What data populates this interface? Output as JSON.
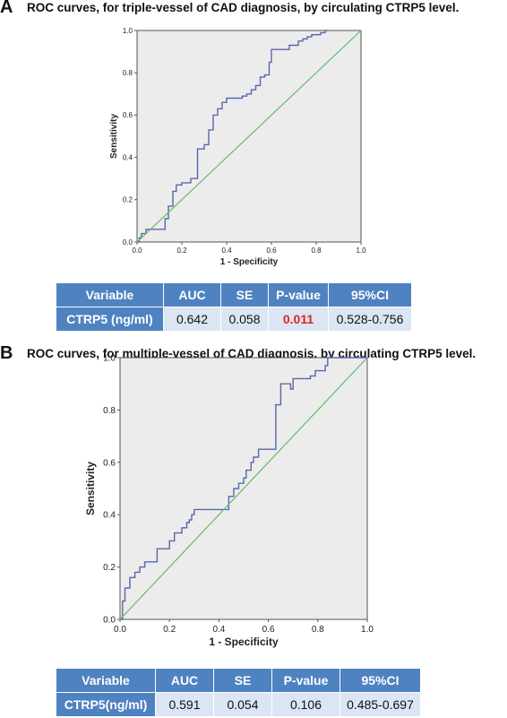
{
  "panels": [
    {
      "letter": "A",
      "title": "ROC curves, for triple-vessel  of CAD diagnosis, by circulating CTRP5 level.",
      "table": {
        "headers": [
          "Variable",
          "AUC",
          "SE",
          "P-value",
          "95%CI"
        ],
        "row": [
          "CTRP5 (ng/ml)",
          "0.642",
          "0.058",
          "0.011",
          "0.528-0.756"
        ]
      }
    },
    {
      "letter": "B",
      "title": "ROC curves, for multiple-vessel  of CAD diagnosis, by circulating CTRP5 level.",
      "table": {
        "headers": [
          "Variable",
          "AUC",
          "SE",
          "P-value",
          "95%CI"
        ],
        "row": [
          "CTRP5(ng/ml)",
          "0.591",
          "0.054",
          "0.106",
          "0.485-0.697"
        ]
      }
    }
  ],
  "colors": {
    "roc_line": "#5a66ad",
    "reference_line": "#66bb66",
    "plot_background": "#ececec",
    "table_header": "#4f82c0",
    "table_cell": "#dbe5f3",
    "significant_p": "#e0251b"
  },
  "chart_data": [
    {
      "type": "line",
      "xlabel": "1 - Specificity",
      "ylabel": "Sensitivity",
      "xlim": [
        0,
        1
      ],
      "ylim": [
        0,
        1
      ],
      "xticks": [
        "0.0",
        "0.2",
        "0.4",
        "0.6",
        "0.8",
        "1.0"
      ],
      "yticks": [
        "0.0",
        "0.2",
        "0.4",
        "0.6",
        "0.8",
        "1.0"
      ],
      "grid": false,
      "series": [
        {
          "role": "roc",
          "x": [
            0.0,
            0.01,
            0.01,
            0.02,
            0.02,
            0.04,
            0.04,
            0.06,
            0.06,
            0.125,
            0.125,
            0.14,
            0.14,
            0.16,
            0.16,
            0.175,
            0.175,
            0.2,
            0.2,
            0.24,
            0.24,
            0.27,
            0.27,
            0.3,
            0.3,
            0.32,
            0.32,
            0.34,
            0.34,
            0.36,
            0.36,
            0.38,
            0.38,
            0.4,
            0.4,
            0.47,
            0.47,
            0.49,
            0.49,
            0.51,
            0.51,
            0.53,
            0.53,
            0.55,
            0.55,
            0.57,
            0.57,
            0.59,
            0.59,
            0.6,
            0.6,
            0.68,
            0.68,
            0.72,
            0.72,
            0.74,
            0.74,
            0.76,
            0.76,
            0.78,
            0.78,
            0.82,
            0.82,
            0.84,
            0.84,
            0.85,
            0.85
          ],
          "y": [
            0.0,
            0.0,
            0.02,
            0.02,
            0.04,
            0.04,
            0.06,
            0.06,
            0.06,
            0.06,
            0.11,
            0.11,
            0.17,
            0.17,
            0.24,
            0.24,
            0.27,
            0.27,
            0.28,
            0.28,
            0.3,
            0.3,
            0.44,
            0.44,
            0.46,
            0.46,
            0.53,
            0.53,
            0.6,
            0.6,
            0.63,
            0.63,
            0.66,
            0.66,
            0.68,
            0.68,
            0.69,
            0.69,
            0.7,
            0.7,
            0.72,
            0.72,
            0.74,
            0.74,
            0.78,
            0.78,
            0.79,
            0.79,
            0.85,
            0.85,
            0.91,
            0.91,
            0.93,
            0.93,
            0.95,
            0.95,
            0.96,
            0.96,
            0.97,
            0.97,
            0.98,
            0.98,
            0.99,
            0.99,
            1.0,
            1.0,
            1.0
          ]
        },
        {
          "role": "reference",
          "x": [
            0,
            1
          ],
          "y": [
            0,
            1
          ]
        }
      ]
    },
    {
      "type": "line",
      "xlabel": "1 - Specificity",
      "ylabel": "Sensitivity",
      "xlim": [
        0,
        1
      ],
      "ylim": [
        0,
        1
      ],
      "xticks": [
        "0.0",
        "0.2",
        "0.4",
        "0.6",
        "0.8",
        "1.0"
      ],
      "yticks": [
        "0.0",
        "0.2",
        "0.4",
        "0.6",
        "0.8",
        "1.0"
      ],
      "grid": false,
      "series": [
        {
          "role": "roc",
          "x": [
            0.0,
            0.01,
            0.01,
            0.02,
            0.02,
            0.04,
            0.04,
            0.06,
            0.06,
            0.08,
            0.08,
            0.1,
            0.1,
            0.15,
            0.15,
            0.2,
            0.2,
            0.22,
            0.22,
            0.25,
            0.25,
            0.27,
            0.27,
            0.28,
            0.28,
            0.29,
            0.29,
            0.3,
            0.3,
            0.44,
            0.44,
            0.46,
            0.46,
            0.48,
            0.48,
            0.5,
            0.5,
            0.51,
            0.51,
            0.53,
            0.53,
            0.54,
            0.54,
            0.56,
            0.56,
            0.63,
            0.63,
            0.65,
            0.65,
            0.69,
            0.69,
            0.7,
            0.7,
            0.77,
            0.77,
            0.79,
            0.79,
            0.83,
            0.83,
            0.84,
            0.84,
            0.85,
            0.85,
            1.0
          ],
          "y": [
            0.0,
            0.0,
            0.07,
            0.07,
            0.12,
            0.12,
            0.16,
            0.16,
            0.18,
            0.18,
            0.2,
            0.2,
            0.22,
            0.22,
            0.27,
            0.27,
            0.3,
            0.3,
            0.33,
            0.33,
            0.35,
            0.35,
            0.37,
            0.37,
            0.38,
            0.38,
            0.4,
            0.4,
            0.42,
            0.42,
            0.47,
            0.47,
            0.5,
            0.5,
            0.52,
            0.52,
            0.54,
            0.54,
            0.57,
            0.57,
            0.6,
            0.6,
            0.62,
            0.62,
            0.65,
            0.65,
            0.82,
            0.82,
            0.9,
            0.9,
            0.88,
            0.88,
            0.92,
            0.92,
            0.93,
            0.93,
            0.95,
            0.95,
            0.97,
            0.97,
            1.0,
            1.0,
            1.0,
            1.0
          ]
        },
        {
          "role": "reference",
          "x": [
            0,
            1
          ],
          "y": [
            0,
            1
          ]
        }
      ]
    }
  ]
}
